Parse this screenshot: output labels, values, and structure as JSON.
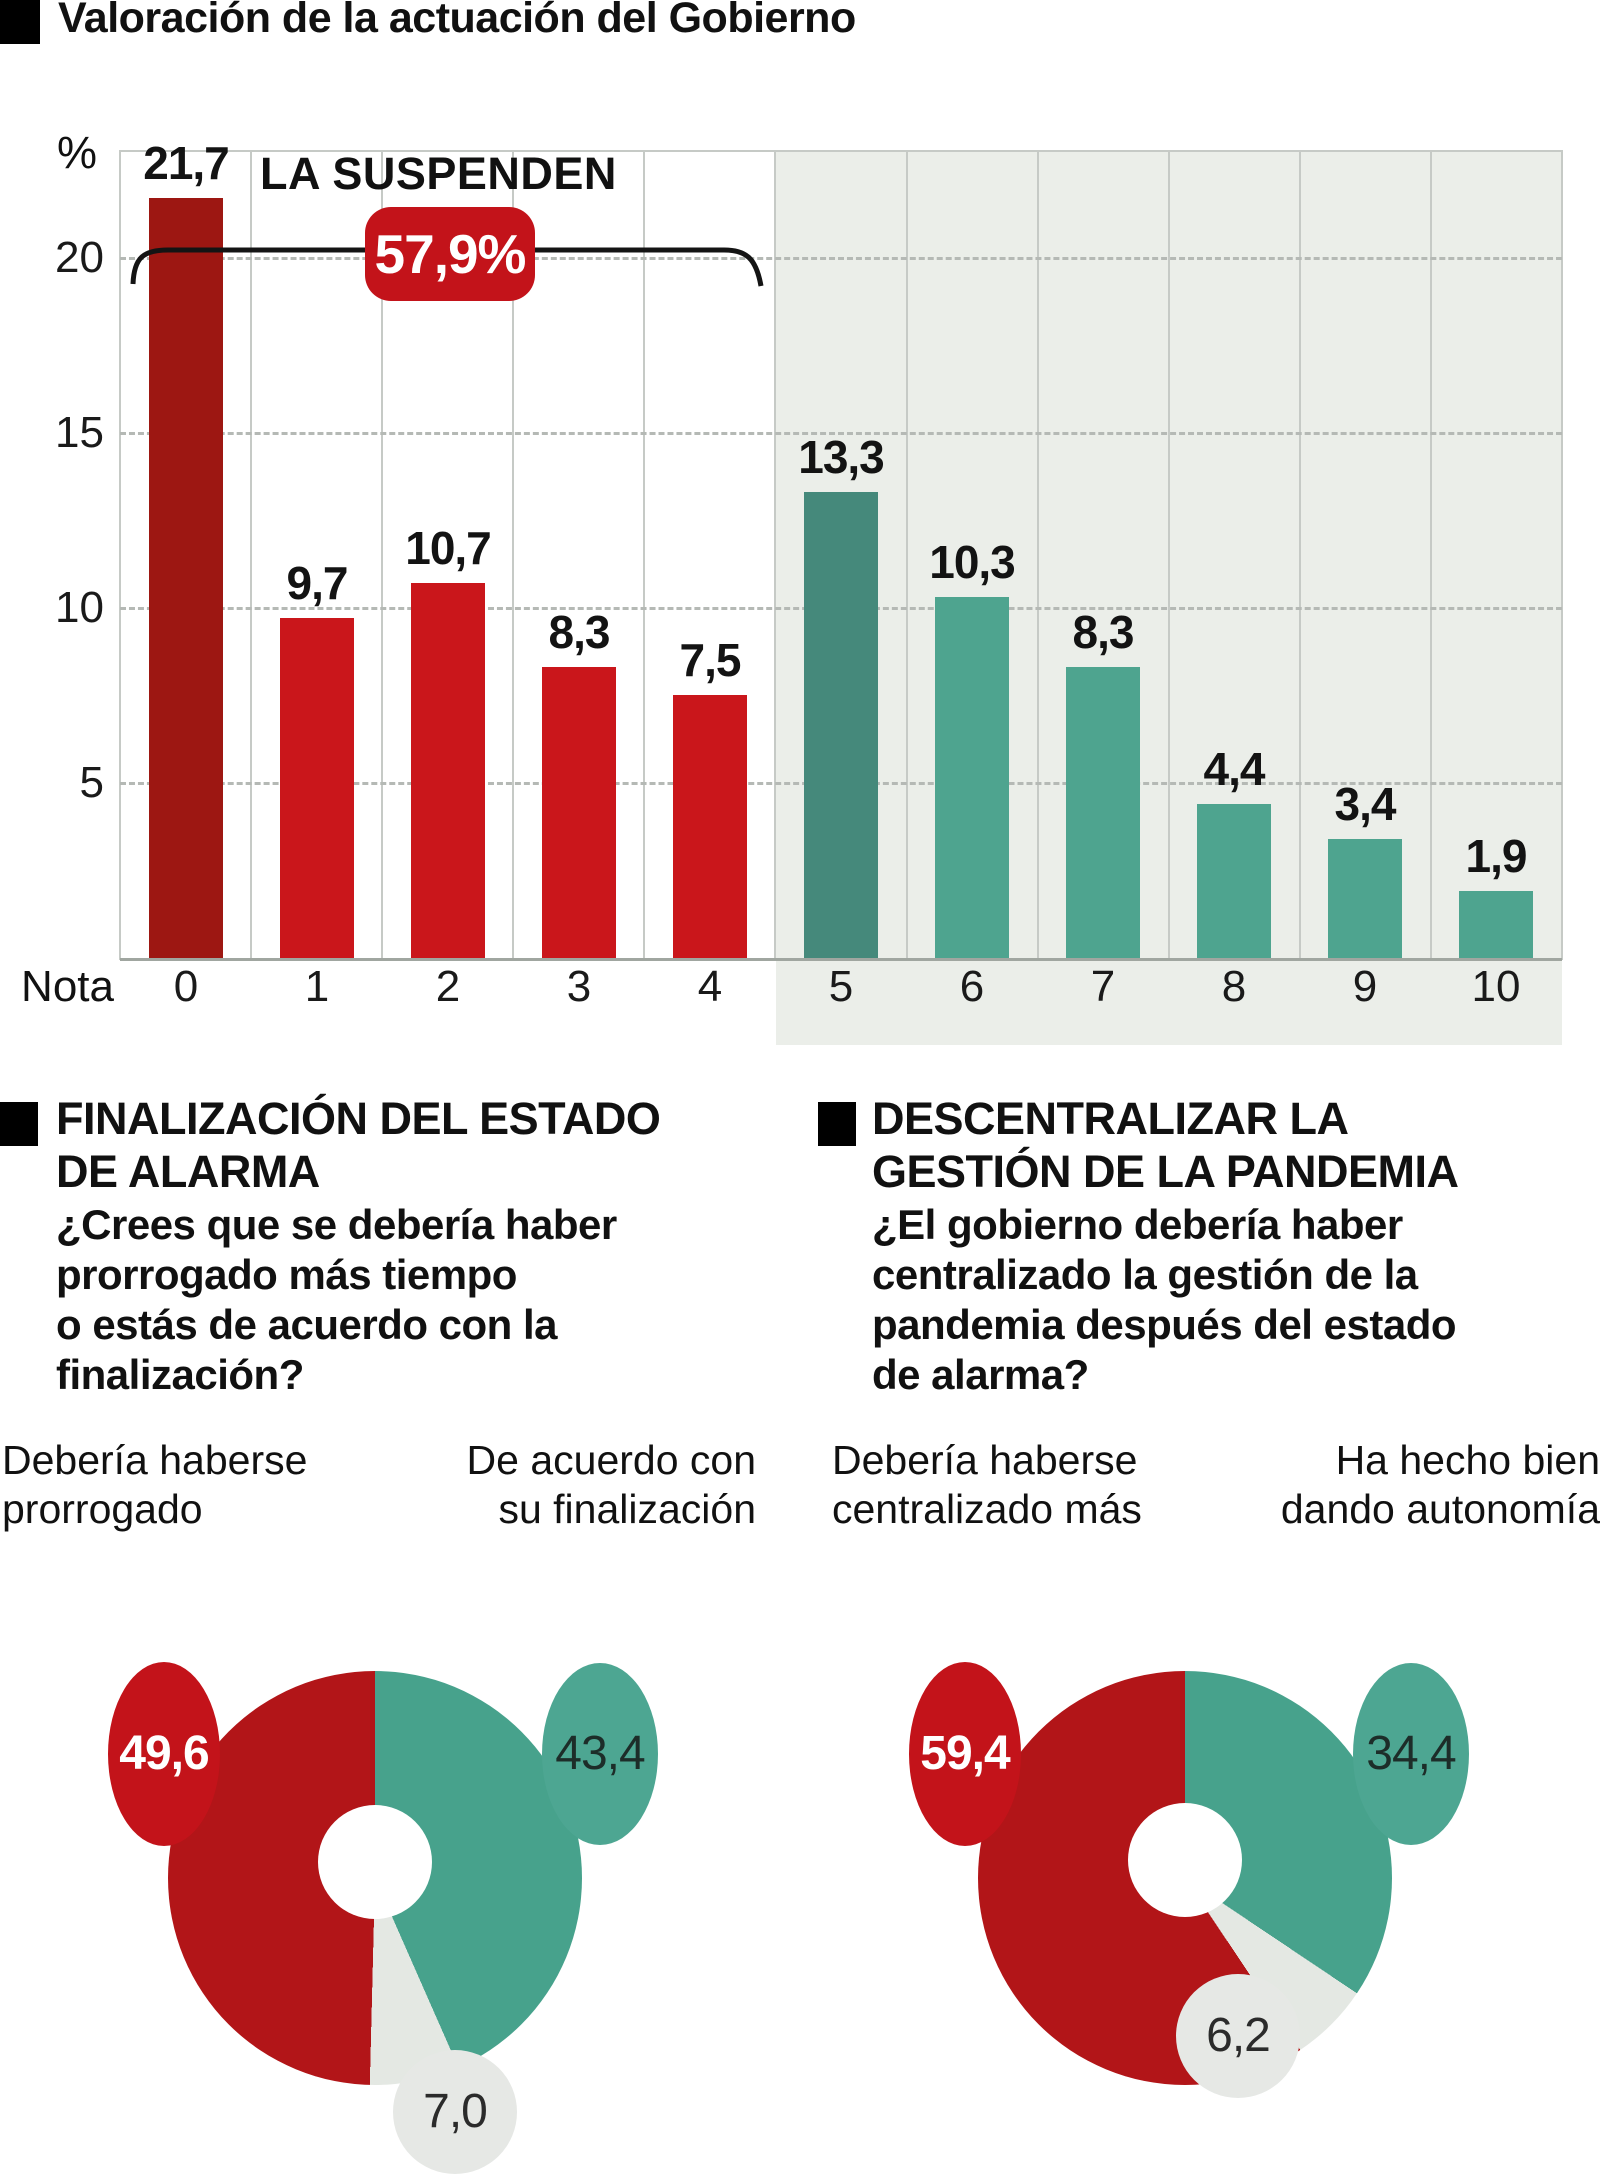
{
  "header": {
    "title": "Valoración de la actuación del Gobierno"
  },
  "axis": {
    "percent_label": "%",
    "nota_label": "Nota"
  },
  "annotation": {
    "text": "LA SUSPENDEN",
    "badge": "57,9%"
  },
  "colors": {
    "dark_red_bar": "#9d1712",
    "red_bar": "#ca161b",
    "dark_teal_bar": "#45897b",
    "teal_bar": "#4ea48f",
    "pie_red": "#b21518",
    "pie_teal": "#47a28c",
    "slice_gray": "#e4e8e3",
    "badge_red": "#c3131a",
    "badge_teal": "#4da692",
    "badge_gray": "#e6e8e5",
    "panel_gray": "#ebeee9"
  },
  "sections": {
    "left": {
      "heading_lines": [
        "FINALIZACIÓN DEL ESTADO",
        "DE ALARMA"
      ],
      "question_lines": [
        "¿Crees que se debería haber",
        "prorrogado más tiempo",
        "o estás de acuerdo con la",
        "finalización?"
      ],
      "left_label_lines": [
        "Debería haberse",
        "prorrogado"
      ],
      "right_label_lines": [
        "De acuerdo con",
        "su finalización"
      ]
    },
    "right": {
      "heading_lines": [
        "DESCENTRALIZAR LA",
        "GESTIÓN DE LA PANDEMIA"
      ],
      "question_lines": [
        "¿El gobierno debería haber",
        "centralizado la gestión de la",
        "pandemia después del estado",
        "de alarma?"
      ],
      "left_label_lines": [
        "Debería haberse",
        "centralizado más"
      ],
      "right_label_lines": [
        "Ha hecho bien",
        "dando autonomía"
      ]
    }
  },
  "chart_data": [
    {
      "type": "bar",
      "title": "Valoración de la actuación del Gobierno",
      "xlabel": "Nota",
      "ylabel": "%",
      "categories": [
        "0",
        "1",
        "2",
        "3",
        "4",
        "5",
        "6",
        "7",
        "8",
        "9",
        "10"
      ],
      "values": [
        21.7,
        9.7,
        10.7,
        8.3,
        7.5,
        13.3,
        10.3,
        8.3,
        4.4,
        3.4,
        1.9
      ],
      "labels": [
        "21,7",
        "9,7",
        "10,7",
        "8,3",
        "7,5",
        "13,3",
        "10,3",
        "8,3",
        "4,4",
        "3,4",
        "1,9"
      ],
      "color_keys": [
        "dark_red_bar",
        "red_bar",
        "red_bar",
        "red_bar",
        "red_bar",
        "dark_teal_bar",
        "teal_bar",
        "teal_bar",
        "teal_bar",
        "teal_bar",
        "teal_bar"
      ],
      "y_ticks": [
        {
          "value": 20,
          "label": "20"
        },
        {
          "value": 15,
          "label": "15"
        },
        {
          "value": 10,
          "label": "10"
        },
        {
          "value": 5,
          "label": "5"
        }
      ],
      "ylim": [
        0,
        23.1
      ],
      "grid": "horizontal dashed, vertical solid",
      "legend_position": "none",
      "annotation": {
        "text": "LA SUSPENDEN",
        "badge": "57,9%",
        "span": "categories 0-4"
      },
      "highlight": "categories 5-10 on gray panel"
    },
    {
      "type": "pie",
      "donut": true,
      "title": "FINALIZACIÓN DEL ESTADO DE ALARMA",
      "question": "¿Crees que se debería haber prorrogado más tiempo o estás de acuerdo con la finalización?",
      "start": "12 o'clock, clockwise",
      "slices": [
        {
          "value": 43.4,
          "label": "43,4",
          "color_key": "pie_teal",
          "legend": "De acuerdo con su finalización"
        },
        {
          "value": 7.0,
          "label": "7,0",
          "color_key": "slice_gray",
          "legend": ""
        },
        {
          "value": 49.6,
          "label": "49,6",
          "color_key": "pie_red",
          "legend": "Debería haberse prorrogado"
        }
      ]
    },
    {
      "type": "pie",
      "donut": true,
      "title": "DESCENTRALIZAR LA GESTIÓN DE LA PANDEMIA",
      "question": "¿El gobierno debería haber centralizado la gestión de la pandemia después del estado de alarma?",
      "start": "12 o'clock, clockwise",
      "slices": [
        {
          "value": 34.4,
          "label": "34,4",
          "color_key": "pie_teal",
          "legend": "Ha hecho bien dando autonomía"
        },
        {
          "value": 6.2,
          "label": "6,2",
          "color_key": "slice_gray",
          "legend": ""
        },
        {
          "value": 59.4,
          "label": "59,4",
          "color_key": "pie_red",
          "legend": "Debería haberse centralizado más"
        }
      ]
    }
  ]
}
